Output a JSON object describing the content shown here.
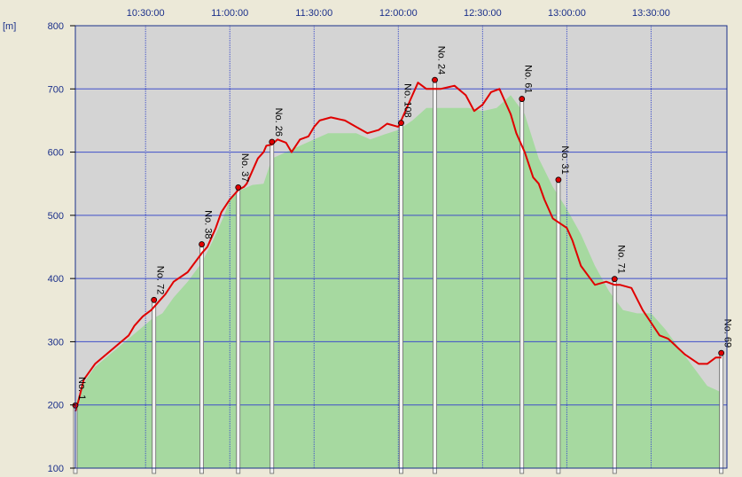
{
  "chart_data": {
    "type": "area",
    "title": "",
    "xlabel": "",
    "ylabel": "[m]",
    "x_range": [
      "10:05:00",
      "13:57:00"
    ],
    "ylim": [
      100,
      800
    ],
    "y_ticks": [
      100,
      200,
      300,
      400,
      500,
      600,
      700,
      800
    ],
    "x_ticks": [
      "10:30:00",
      "11:00:00",
      "11:30:00",
      "12:00:00",
      "12:30:00",
      "13:00:00",
      "13:30:00"
    ],
    "grid": true,
    "colors": {
      "plot_bg": "#d4d4d4",
      "grid": "#3f4fc9",
      "elevation_fill": "#a6d9a0",
      "track_line": "#e00000",
      "tick_text": "#1a2f8a"
    },
    "series": [
      {
        "role": "track elevation (red line)",
        "x": [
          "10:05:00",
          "10:06:00",
          "10:08:00",
          "10:12:00",
          "10:16:00",
          "10:20:00",
          "10:24:00",
          "10:26:00",
          "10:29:00",
          "10:32:00",
          "10:34:00",
          "10:35:00",
          "10:37:00",
          "10:40:00",
          "10:45:00",
          "10:50:00",
          "10:52:00",
          "10:55:00",
          "10:57:00",
          "11:00:00",
          "11:03:00",
          "11:05:00",
          "11:06:00",
          "11:10:00",
          "11:12:00",
          "11:13:00",
          "11:15:00",
          "11:17:00",
          "11:20:00",
          "11:22:00",
          "11:25:00",
          "11:28:00",
          "11:30:00",
          "11:32:00",
          "11:36:00",
          "11:41:00",
          "11:45:00",
          "11:49:00",
          "11:53:00",
          "11:56:00",
          "12:00:00",
          "12:02:00",
          "12:05:00",
          "12:07:00",
          "12:10:00",
          "12:15:00",
          "12:20:00",
          "12:24:00",
          "12:27:00",
          "12:30:00",
          "12:33:00",
          "12:36:00",
          "12:38:00",
          "12:40:00",
          "12:42:00",
          "12:45:00",
          "12:48:00",
          "12:50:00",
          "12:52:00",
          "12:55:00",
          "13:00:00",
          "13:02:00",
          "13:05:00",
          "13:10:00",
          "13:14:00",
          "13:17:00",
          "13:19:00",
          "13:23:00",
          "13:27:00",
          "13:30:00",
          "13:33:00",
          "13:36:00",
          "13:42:00",
          "13:47:00",
          "13:50:00",
          "13:53:00",
          "13:55:00"
        ],
        "values": [
          190,
          205,
          240,
          265,
          280,
          295,
          310,
          325,
          340,
          350,
          360,
          365,
          375,
          395,
          410,
          440,
          450,
          480,
          505,
          525,
          540,
          545,
          550,
          590,
          600,
          610,
          612,
          620,
          615,
          600,
          620,
          625,
          640,
          650,
          655,
          650,
          640,
          630,
          635,
          645,
          640,
          660,
          690,
          710,
          700,
          700,
          705,
          690,
          665,
          675,
          695,
          700,
          680,
          660,
          630,
          600,
          560,
          550,
          525,
          495,
          480,
          460,
          420,
          390,
          395,
          390,
          390,
          385,
          350,
          330,
          310,
          305,
          280,
          265,
          265,
          275,
          275
        ]
      },
      {
        "role": "terrain elevation (green area)",
        "x": [
          "10:05:00",
          "10:08:00",
          "10:12:00",
          "10:16:00",
          "10:20:00",
          "10:24:00",
          "10:28:00",
          "10:32:00",
          "10:36:00",
          "10:40:00",
          "10:45:00",
          "10:50:00",
          "10:54:00",
          "10:58:00",
          "11:00:00",
          "11:04:00",
          "11:08:00",
          "11:12:00",
          "11:15:00",
          "11:20:00",
          "11:25:00",
          "11:30:00",
          "11:35:00",
          "11:40:00",
          "11:45:00",
          "11:50:00",
          "11:55:00",
          "12:00:00",
          "12:05:00",
          "12:10:00",
          "12:15:00",
          "12:20:00",
          "12:25:00",
          "12:30:00",
          "12:35:00",
          "12:40:00",
          "12:45:00",
          "12:50:00",
          "12:55:00",
          "13:00:00",
          "13:05:00",
          "13:10:00",
          "13:15:00",
          "13:20:00",
          "13:25:00",
          "13:30:00",
          "13:35:00",
          "13:40:00",
          "13:45:00",
          "13:50:00",
          "13:55:00"
        ],
        "values": [
          200,
          235,
          260,
          275,
          290,
          305,
          320,
          335,
          345,
          370,
          395,
          425,
          460,
          500,
          525,
          540,
          548,
          550,
          590,
          600,
          610,
          620,
          630,
          630,
          630,
          620,
          628,
          635,
          650,
          670,
          670,
          670,
          670,
          665,
          670,
          690,
          660,
          590,
          545,
          510,
          470,
          420,
          380,
          350,
          345,
          345,
          320,
          290,
          260,
          230,
          220
        ]
      }
    ],
    "waypoints": [
      {
        "label": "No. 1",
        "time": "10:05:00",
        "alt": 195
      },
      {
        "label": "No. 72",
        "time": "10:33:00",
        "alt": 362
      },
      {
        "label": "No. 38",
        "time": "10:50:00",
        "alt": 450
      },
      {
        "label": "No. 37",
        "time": "11:03:00",
        "alt": 540
      },
      {
        "label": "No. 26",
        "time": "11:15:00",
        "alt": 612
      },
      {
        "label": "No. 108",
        "time": "12:01:00",
        "alt": 642
      },
      {
        "label": "No. 24",
        "time": "12:13:00",
        "alt": 710
      },
      {
        "label": "No. 61",
        "time": "12:44:00",
        "alt": 680
      },
      {
        "label": "No. 31",
        "time": "12:57:00",
        "alt": 552
      },
      {
        "label": "No. 71",
        "time": "13:17:00",
        "alt": 395
      },
      {
        "label": "No. 69",
        "time": "13:55:00",
        "alt": 278
      }
    ]
  }
}
